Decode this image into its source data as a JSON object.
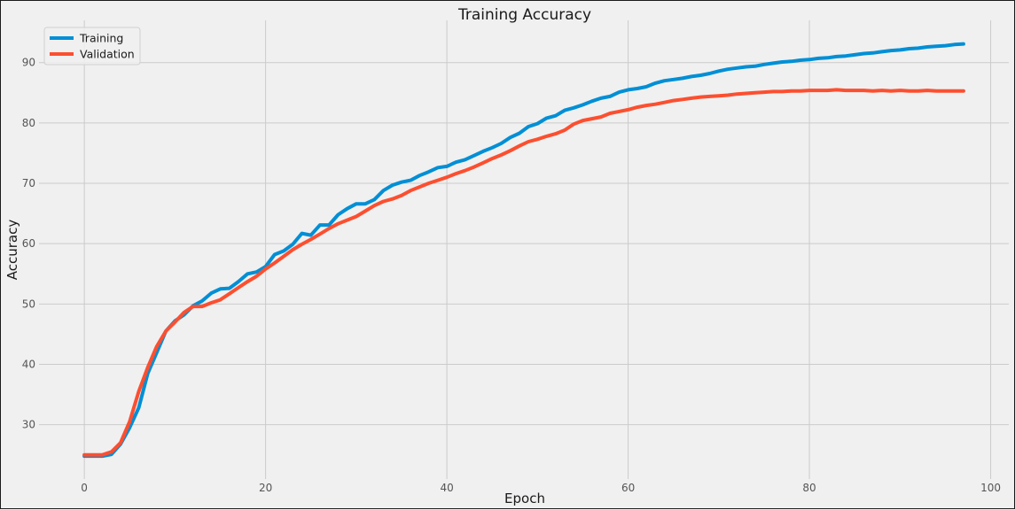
{
  "chart_data": {
    "type": "line",
    "title": "Training Accuracy",
    "xlabel": "Epoch",
    "ylabel": "Accuracy",
    "xlim": [
      -5,
      102
    ],
    "ylim": [
      21,
      97
    ],
    "xticks": [
      0,
      20,
      40,
      60,
      80,
      100
    ],
    "yticks": [
      30,
      40,
      50,
      60,
      70,
      80,
      90
    ],
    "grid": true,
    "legend_position": "top-left",
    "colors": {
      "background": "#f0f0f0",
      "grid": "#cbcbcb",
      "training": "#008fd5",
      "validation": "#fc4f30"
    },
    "series": [
      {
        "name": "Training",
        "x": [
          0,
          1,
          2,
          3,
          4,
          5,
          6,
          7,
          8,
          9,
          10,
          11,
          12,
          13,
          14,
          15,
          16,
          17,
          18,
          19,
          20,
          21,
          22,
          23,
          24,
          25,
          26,
          27,
          28,
          29,
          30,
          31,
          32,
          33,
          34,
          35,
          36,
          37,
          38,
          39,
          40,
          41,
          42,
          43,
          44,
          45,
          46,
          47,
          48,
          49,
          50,
          51,
          52,
          53,
          54,
          55,
          56,
          57,
          58,
          59,
          60,
          61,
          62,
          63,
          64,
          65,
          66,
          67,
          68,
          69,
          70,
          71,
          72,
          73,
          74,
          75,
          76,
          77,
          78,
          79,
          80,
          81,
          82,
          83,
          84,
          85,
          86,
          87,
          88,
          89,
          90,
          91,
          92,
          93,
          94,
          95,
          96,
          97
        ],
        "values": [
          24.8,
          24.8,
          24.8,
          25.1,
          26.8,
          29.5,
          32.8,
          38.5,
          42.0,
          45.5,
          47.2,
          48.2,
          49.7,
          50.5,
          51.8,
          52.5,
          52.6,
          53.7,
          55.0,
          55.3,
          56.2,
          58.2,
          58.8,
          59.9,
          61.7,
          61.4,
          63.1,
          63.1,
          64.8,
          65.8,
          66.6,
          66.6,
          67.3,
          68.8,
          69.7,
          70.2,
          70.5,
          71.3,
          71.9,
          72.6,
          72.8,
          73.5,
          73.9,
          74.6,
          75.3,
          75.9,
          76.6,
          77.6,
          78.3,
          79.4,
          79.9,
          80.8,
          81.2,
          82.1,
          82.5,
          83.0,
          83.6,
          84.1,
          84.4,
          85.1,
          85.5,
          85.7,
          86.0,
          86.6,
          87.0,
          87.2,
          87.4,
          87.7,
          87.9,
          88.2,
          88.6,
          88.9,
          89.1,
          89.3,
          89.4,
          89.7,
          89.9,
          90.1,
          90.2,
          90.4,
          90.5,
          90.7,
          90.8,
          91.0,
          91.1,
          91.3,
          91.5,
          91.6,
          91.8,
          92.0,
          92.1,
          92.3,
          92.4,
          92.6,
          92.7,
          92.8,
          93.0,
          93.1
        ]
      },
      {
        "name": "Validation",
        "x": [
          0,
          1,
          2,
          3,
          4,
          5,
          6,
          7,
          8,
          9,
          10,
          11,
          12,
          13,
          14,
          15,
          16,
          17,
          18,
          19,
          20,
          21,
          22,
          23,
          24,
          25,
          26,
          27,
          28,
          29,
          30,
          31,
          32,
          33,
          34,
          35,
          36,
          37,
          38,
          39,
          40,
          41,
          42,
          43,
          44,
          45,
          46,
          47,
          48,
          49,
          50,
          51,
          52,
          53,
          54,
          55,
          56,
          57,
          58,
          59,
          60,
          61,
          62,
          63,
          64,
          65,
          66,
          67,
          68,
          69,
          70,
          71,
          72,
          73,
          74,
          75,
          76,
          77,
          78,
          79,
          80,
          81,
          82,
          83,
          84,
          85,
          86,
          87,
          88,
          89,
          90,
          91,
          92,
          93,
          94,
          95,
          96,
          97
        ],
        "values": [
          25.0,
          25.0,
          25.0,
          25.5,
          27.0,
          30.5,
          35.5,
          39.5,
          43.0,
          45.5,
          47.0,
          48.6,
          49.6,
          49.6,
          50.2,
          50.7,
          51.7,
          52.7,
          53.7,
          54.6,
          55.8,
          56.8,
          57.9,
          59.0,
          59.9,
          60.7,
          61.6,
          62.5,
          63.3,
          63.9,
          64.5,
          65.4,
          66.3,
          67.0,
          67.4,
          68.0,
          68.8,
          69.4,
          70.0,
          70.5,
          71.0,
          71.6,
          72.1,
          72.7,
          73.4,
          74.1,
          74.7,
          75.4,
          76.2,
          76.9,
          77.3,
          77.8,
          78.2,
          78.8,
          79.8,
          80.4,
          80.7,
          81.0,
          81.6,
          81.9,
          82.2,
          82.6,
          82.9,
          83.1,
          83.4,
          83.7,
          83.9,
          84.1,
          84.3,
          84.4,
          84.5,
          84.6,
          84.8,
          84.9,
          85.0,
          85.1,
          85.2,
          85.2,
          85.3,
          85.3,
          85.4,
          85.4,
          85.4,
          85.5,
          85.4,
          85.4,
          85.4,
          85.3,
          85.4,
          85.3,
          85.4,
          85.3,
          85.3,
          85.4,
          85.3,
          85.3,
          85.3,
          85.3
        ]
      }
    ]
  }
}
